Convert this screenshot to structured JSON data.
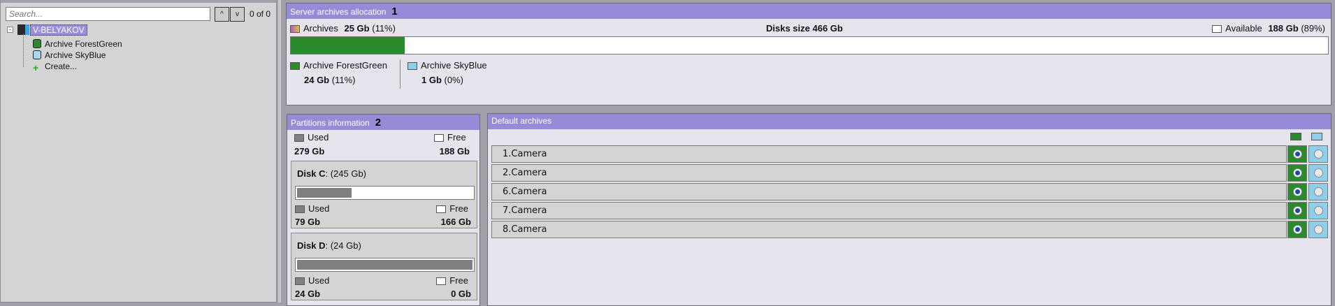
{
  "left": {
    "search_placeholder": "Search...",
    "up": "^",
    "down": "v",
    "count": "0 of 0",
    "tree": {
      "server": "V-BELYAKOV",
      "items": [
        "Archive ForestGreen",
        "Archive SkyBlue",
        "Create..."
      ]
    }
  },
  "allocation": {
    "title": "Server archives allocation",
    "marker": "1",
    "archives_label": "Archives",
    "archives_size": "25 Gb",
    "archives_pct": "(11%)",
    "disks_size": "Disks size 466 Gb",
    "available_label": "Available",
    "available_size": "188 Gb",
    "available_pct": "(89%)",
    "fill_percent": 11,
    "archives": [
      {
        "name": "Archive ForestGreen",
        "size": "24 Gb",
        "pct": "(11%)",
        "color": "#2b8a2b"
      },
      {
        "name": "Archive SkyBlue",
        "size": "1 Gb",
        "pct": "(0%)",
        "color": "#8ecfec"
      }
    ]
  },
  "partitions": {
    "title": "Partitions information",
    "marker": "2",
    "used_label": "Used",
    "free_label": "Free",
    "used": "279 Gb",
    "free": "188 Gb",
    "disks": [
      {
        "name": "Disk C",
        "size": "(245 Gb)",
        "used": "79 Gb",
        "free": "166 Gb",
        "used_percent": 32
      },
      {
        "name": "Disk D",
        "size": "(24 Gb)",
        "used": "24 Gb",
        "free": "0 Gb",
        "used_percent": 100
      }
    ]
  },
  "defaults": {
    "title": "Default archives",
    "cameras": [
      "1.Camera",
      "2.Camera",
      "6.Camera",
      "7.Camera",
      "8.Camera"
    ],
    "selected_archive": "Archive ForestGreen"
  },
  "colors": {
    "header": "#968bd6",
    "forestgreen": "#2b8a2b",
    "skyblue": "#8ecfec"
  }
}
